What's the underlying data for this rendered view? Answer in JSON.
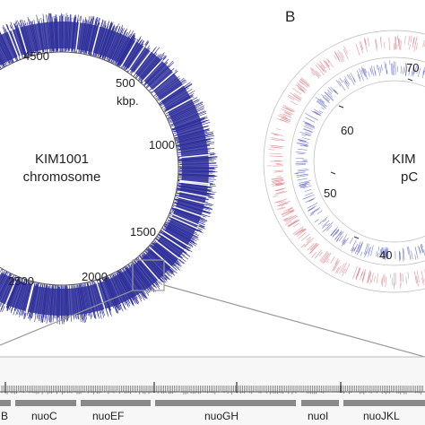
{
  "panel_b_label": "B",
  "chromosome": {
    "name_line1": "KIM1001",
    "name_line2": "chromosome",
    "unit_label": "kbp.",
    "ticks": [
      {
        "label": "500",
        "pos": 500
      },
      {
        "label": "1000",
        "pos": 1000
      },
      {
        "label": "1500",
        "pos": 1500
      },
      {
        "label": "2000",
        "pos": 2000
      },
      {
        "label": "2500",
        "pos": 2500
      },
      {
        "label": "4500",
        "pos": 4500
      }
    ],
    "ring_color": "#2e2f9a"
  },
  "plasmid": {
    "name_line1": "KIM",
    "name_line2": "pC",
    "ticks": [
      {
        "label": "70",
        "pos": 70
      },
      {
        "label": "60",
        "pos": 60
      },
      {
        "label": "50",
        "pos": 50
      },
      {
        "label": "40",
        "pos": 40
      }
    ],
    "outer_color": "#e07a86",
    "inner_color": "#5a63c8"
  },
  "genes": [
    {
      "label": "B"
    },
    {
      "label": "nuoC"
    },
    {
      "label": "nuoEF"
    },
    {
      "label": "nuoGH"
    },
    {
      "label": "nuoI"
    },
    {
      "label": "nuoJKL"
    }
  ]
}
